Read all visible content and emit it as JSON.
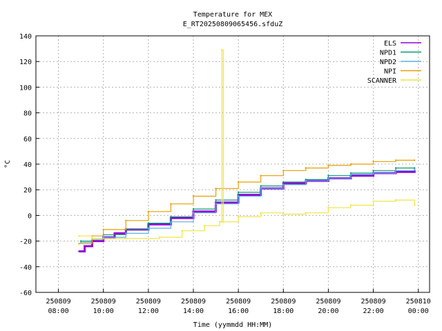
{
  "chart_data": {
    "type": "line",
    "title": "Temperature for MEX",
    "subtitle": "E_RT20250809065456.sfduZ",
    "xlabel": "Time (yymmdd HH:MM)",
    "ylabel": "°C",
    "ylim": [
      -60,
      140
    ],
    "yticks": [
      -60,
      -40,
      -20,
      0,
      20,
      40,
      60,
      80,
      100,
      120,
      140
    ],
    "xlim": [
      "2025-08-09 07:00",
      "2025-08-10 00:30"
    ],
    "xticks": [
      {
        "t": "2025-08-09 08:00",
        "date": "250809",
        "time": "08:00"
      },
      {
        "t": "2025-08-09 10:00",
        "date": "250809",
        "time": "10:00"
      },
      {
        "t": "2025-08-09 12:00",
        "date": "250809",
        "time": "12:00"
      },
      {
        "t": "2025-08-09 14:00",
        "date": "250809",
        "time": "14:00"
      },
      {
        "t": "2025-08-09 16:00",
        "date": "250809",
        "time": "16:00"
      },
      {
        "t": "2025-08-09 18:00",
        "date": "250809",
        "time": "18:00"
      },
      {
        "t": "2025-08-09 20:00",
        "date": "250809",
        "time": "20:00"
      },
      {
        "t": "2025-08-09 22:00",
        "date": "250809",
        "time": "22:00"
      },
      {
        "t": "2025-08-10 00:00",
        "date": "250810",
        "time": "00:00"
      }
    ],
    "grid": true,
    "legend_position": "top-right",
    "series": [
      {
        "name": "ELS",
        "color": "#9400d3",
        "x": [
          "2025-08-09 08:55",
          "2025-08-09 09:10",
          "2025-08-09 09:30",
          "2025-08-09 10:00",
          "2025-08-09 10:30",
          "2025-08-09 11:00",
          "2025-08-09 12:00",
          "2025-08-09 13:00",
          "2025-08-09 14:00",
          "2025-08-09 15:00",
          "2025-08-09 16:00",
          "2025-08-09 17:00",
          "2025-08-09 18:00",
          "2025-08-09 19:00",
          "2025-08-09 20:00",
          "2025-08-09 21:00",
          "2025-08-09 22:00",
          "2025-08-09 23:00",
          "2025-08-09 23:50"
        ],
        "values": [
          -28,
          -24,
          -20,
          -17,
          -14,
          -11,
          -7,
          -2,
          3,
          10,
          16,
          21,
          25,
          27,
          29,
          31,
          33,
          34,
          35
        ]
      },
      {
        "name": "NPD1",
        "color": "#009e73",
        "x": [
          "2025-08-09 09:00",
          "2025-08-09 09:30",
          "2025-08-09 10:00",
          "2025-08-09 11:00",
          "2025-08-09 12:00",
          "2025-08-09 13:00",
          "2025-08-09 14:00",
          "2025-08-09 15:00",
          "2025-08-09 16:00",
          "2025-08-09 17:00",
          "2025-08-09 18:00",
          "2025-08-09 19:00",
          "2025-08-09 20:00",
          "2025-08-09 21:00",
          "2025-08-09 22:00",
          "2025-08-09 23:00",
          "2025-08-09 23:50"
        ],
        "values": [
          -20,
          -18,
          -15,
          -11,
          -6,
          -1,
          5,
          12,
          18,
          23,
          26,
          28,
          31,
          33,
          35,
          37,
          37
        ]
      },
      {
        "name": "NPD2",
        "color": "#56b4e9",
        "x": [
          "2025-08-09 09:00",
          "2025-08-09 09:30",
          "2025-08-09 10:00",
          "2025-08-09 11:00",
          "2025-08-09 12:00",
          "2025-08-09 13:00",
          "2025-08-09 14:00",
          "2025-08-09 15:00",
          "2025-08-09 16:00",
          "2025-08-09 17:00",
          "2025-08-09 18:00",
          "2025-08-09 19:00",
          "2025-08-09 20:00",
          "2025-08-09 21:00",
          "2025-08-09 22:00",
          "2025-08-09 23:00",
          "2025-08-09 23:50"
        ],
        "values": [
          -21,
          -19,
          -17,
          -14,
          -10,
          -5,
          2,
          9,
          15,
          21,
          24,
          27,
          29,
          32,
          33,
          35,
          36
        ]
      },
      {
        "name": "NPI",
        "color": "#e69f00",
        "x": [
          "2025-08-09 08:55",
          "2025-08-09 09:30",
          "2025-08-09 10:00",
          "2025-08-09 11:00",
          "2025-08-09 12:00",
          "2025-08-09 13:00",
          "2025-08-09 14:00",
          "2025-08-09 15:00",
          "2025-08-09 16:00",
          "2025-08-09 17:00",
          "2025-08-09 18:00",
          "2025-08-09 19:00",
          "2025-08-09 20:00",
          "2025-08-09 21:00",
          "2025-08-09 22:00",
          "2025-08-09 23:00",
          "2025-08-09 23:50"
        ],
        "values": [
          -22,
          -16,
          -11,
          -4,
          3,
          9,
          15,
          21,
          26,
          31,
          35,
          37,
          39,
          40,
          42,
          43,
          43
        ]
      },
      {
        "name": "SCANNER",
        "color": "#f0e442",
        "x": [
          "2025-08-09 08:55",
          "2025-08-09 09:30",
          "2025-08-09 11:00",
          "2025-08-09 12:30",
          "2025-08-09 13:30",
          "2025-08-09 14:30",
          "2025-08-09 15:10",
          "2025-08-09 15:15",
          "2025-08-09 15:16",
          "2025-08-09 15:20",
          "2025-08-09 16:00",
          "2025-08-09 17:00",
          "2025-08-09 18:00",
          "2025-08-09 19:00",
          "2025-08-09 20:00",
          "2025-08-09 21:00",
          "2025-08-09 22:00",
          "2025-08-09 23:00",
          "2025-08-09 23:50"
        ],
        "values": [
          -16,
          -18,
          -18,
          -17,
          -12,
          -8,
          -5,
          -5,
          129,
          -5,
          -1,
          2,
          1,
          2,
          6,
          8,
          11,
          12,
          8
        ]
      }
    ]
  }
}
